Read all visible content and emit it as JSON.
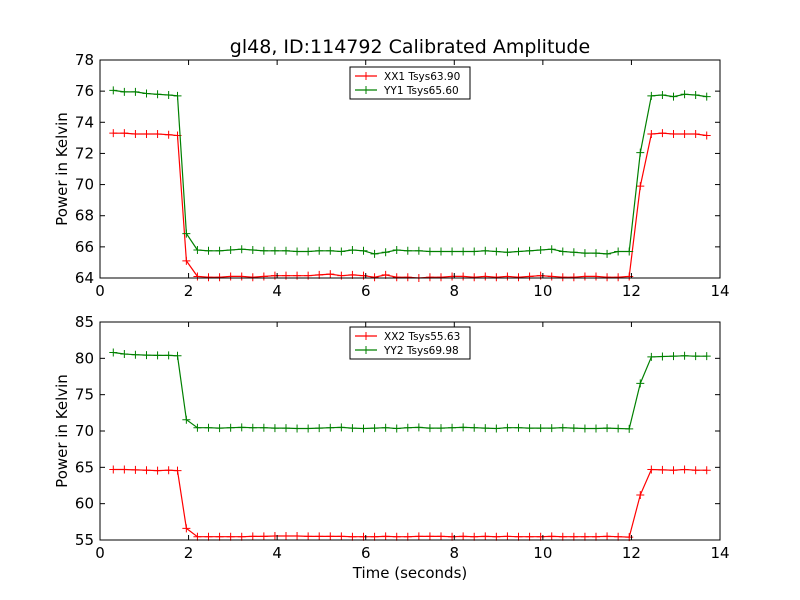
{
  "figure": {
    "title": "gl48, ID:114792 Calibrated Amplitude",
    "xlabel": "Time (seconds)"
  },
  "chart_data": [
    {
      "type": "line",
      "title": "gl48, ID:114792 Calibrated Amplitude",
      "xlabel": "",
      "ylabel": "Power in Kelvin",
      "xlim": [
        0,
        14
      ],
      "ylim": [
        64,
        78
      ],
      "xticks": [
        0,
        2,
        4,
        6,
        8,
        10,
        12,
        14
      ],
      "yticks": [
        64,
        66,
        68,
        70,
        72,
        74,
        76,
        78
      ],
      "grid": false,
      "legend_position": "top-center",
      "x": [
        0.3,
        0.55,
        0.8,
        1.05,
        1.3,
        1.55,
        1.75,
        1.95,
        2.2,
        2.45,
        2.7,
        2.95,
        3.2,
        3.45,
        3.7,
        3.95,
        4.2,
        4.45,
        4.7,
        4.95,
        5.2,
        5.45,
        5.7,
        5.95,
        6.2,
        6.45,
        6.7,
        6.95,
        7.2,
        7.45,
        7.7,
        7.95,
        8.2,
        8.45,
        8.7,
        8.95,
        9.2,
        9.45,
        9.7,
        9.95,
        10.2,
        10.45,
        10.7,
        10.95,
        11.2,
        11.45,
        11.7,
        11.95,
        12.2,
        12.45,
        12.7,
        12.95,
        13.2,
        13.45,
        13.7
      ],
      "series": [
        {
          "name": "XX1 Tsys63.90",
          "color": "#ff0000",
          "values": [
            73.3,
            73.3,
            73.25,
            73.25,
            73.25,
            73.2,
            73.15,
            65.1,
            64.1,
            64.05,
            64.05,
            64.1,
            64.1,
            64.05,
            64.1,
            64.15,
            64.15,
            64.15,
            64.15,
            64.2,
            64.25,
            64.15,
            64.2,
            64.15,
            64.05,
            64.2,
            64.05,
            64.05,
            64.0,
            64.05,
            64.05,
            64.1,
            64.1,
            64.05,
            64.1,
            64.05,
            64.1,
            64.05,
            64.1,
            64.15,
            64.1,
            64.05,
            64.05,
            64.1,
            64.1,
            64.05,
            64.05,
            64.1,
            69.9,
            73.25,
            73.3,
            73.25,
            73.25,
            73.25,
            73.15
          ]
        },
        {
          "name": "YY1 Tsys65.60",
          "color": "#008000",
          "values": [
            76.05,
            75.95,
            75.95,
            75.85,
            75.8,
            75.75,
            75.7,
            66.85,
            65.8,
            65.75,
            65.75,
            65.8,
            65.85,
            65.8,
            65.75,
            65.75,
            65.75,
            65.7,
            65.7,
            65.75,
            65.75,
            65.7,
            65.8,
            65.75,
            65.55,
            65.65,
            65.8,
            65.75,
            65.75,
            65.7,
            65.7,
            65.7,
            65.7,
            65.7,
            65.75,
            65.7,
            65.65,
            65.7,
            65.75,
            65.8,
            65.85,
            65.7,
            65.65,
            65.6,
            65.6,
            65.55,
            65.7,
            65.7,
            72.05,
            75.7,
            75.75,
            75.65,
            75.8,
            75.75,
            75.65
          ]
        }
      ]
    },
    {
      "type": "line",
      "title": "",
      "xlabel": "Time (seconds)",
      "ylabel": "Power in Kelvin",
      "xlim": [
        0,
        14
      ],
      "ylim": [
        55,
        85
      ],
      "xticks": [
        0,
        2,
        4,
        6,
        8,
        10,
        12,
        14
      ],
      "yticks": [
        55,
        60,
        65,
        70,
        75,
        80,
        85
      ],
      "grid": false,
      "legend_position": "top-center",
      "x": [
        0.3,
        0.55,
        0.8,
        1.05,
        1.3,
        1.55,
        1.75,
        1.95,
        2.2,
        2.45,
        2.7,
        2.95,
        3.2,
        3.45,
        3.7,
        3.95,
        4.2,
        4.45,
        4.7,
        4.95,
        5.2,
        5.45,
        5.7,
        5.95,
        6.2,
        6.45,
        6.7,
        6.95,
        7.2,
        7.45,
        7.7,
        7.95,
        8.2,
        8.45,
        8.7,
        8.95,
        9.2,
        9.45,
        9.7,
        9.95,
        10.2,
        10.45,
        10.7,
        10.95,
        11.2,
        11.45,
        11.7,
        11.95,
        12.2,
        12.45,
        12.7,
        12.95,
        13.2,
        13.45,
        13.7
      ],
      "series": [
        {
          "name": "XX2 Tsys55.63",
          "color": "#ff0000",
          "values": [
            64.7,
            64.7,
            64.65,
            64.6,
            64.55,
            64.6,
            64.55,
            56.6,
            55.45,
            55.45,
            55.45,
            55.45,
            55.45,
            55.5,
            55.5,
            55.55,
            55.55,
            55.55,
            55.5,
            55.5,
            55.5,
            55.5,
            55.45,
            55.45,
            55.45,
            55.5,
            55.45,
            55.45,
            55.5,
            55.5,
            55.5,
            55.45,
            55.5,
            55.45,
            55.5,
            55.45,
            55.5,
            55.45,
            55.45,
            55.45,
            55.5,
            55.45,
            55.45,
            55.45,
            55.45,
            55.5,
            55.45,
            55.4,
            61.2,
            64.7,
            64.65,
            64.6,
            64.7,
            64.6,
            64.6
          ]
        },
        {
          "name": "YY2 Tsys69.98",
          "color": "#008000",
          "values": [
            80.8,
            80.6,
            80.5,
            80.45,
            80.4,
            80.4,
            80.35,
            71.55,
            70.45,
            70.45,
            70.4,
            70.45,
            70.5,
            70.45,
            70.45,
            70.4,
            70.4,
            70.35,
            70.35,
            70.4,
            70.45,
            70.5,
            70.4,
            70.35,
            70.4,
            70.45,
            70.35,
            70.45,
            70.5,
            70.4,
            70.4,
            70.45,
            70.5,
            70.45,
            70.4,
            70.35,
            70.45,
            70.45,
            70.4,
            70.4,
            70.4,
            70.45,
            70.4,
            70.35,
            70.35,
            70.4,
            70.35,
            70.3,
            76.55,
            80.2,
            80.25,
            80.3,
            80.35,
            80.3,
            80.3
          ]
        }
      ]
    }
  ]
}
